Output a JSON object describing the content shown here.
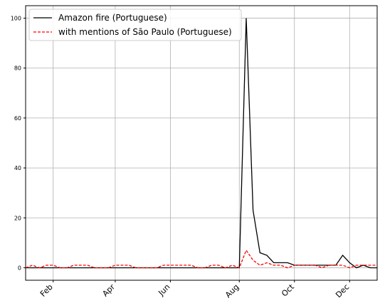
{
  "chart_data": {
    "type": "line",
    "categories": [
      null,
      null,
      null,
      null,
      "Feb",
      null,
      null,
      null,
      null,
      null,
      null,
      null,
      null,
      "Apr",
      null,
      null,
      null,
      null,
      null,
      null,
      null,
      "Jun",
      null,
      null,
      null,
      null,
      null,
      null,
      null,
      null,
      null,
      "Aug",
      null,
      null,
      null,
      null,
      null,
      null,
      null,
      "Oct",
      null,
      null,
      null,
      null,
      null,
      null,
      null,
      "Dec",
      null,
      null,
      null,
      null
    ],
    "series": [
      {
        "name": "Amazon fire (Portuguese)",
        "color": "#000000",
        "dash": false,
        "values": [
          0,
          0,
          0,
          0,
          0,
          0,
          0,
          0,
          0,
          0,
          0,
          0,
          0,
          0,
          0,
          0,
          0,
          0,
          0,
          0,
          0,
          0,
          0,
          0,
          0,
          0,
          0,
          0,
          0,
          0,
          0,
          0,
          100,
          23,
          6,
          5,
          2,
          2,
          2,
          1,
          1,
          1,
          1,
          1,
          1,
          1,
          5,
          2,
          0,
          1,
          0,
          0
        ]
      },
      {
        "name": "with mentions of São Paulo (Portuguese)",
        "color": "#ff0000",
        "dash": true,
        "values": [
          0,
          1,
          0,
          1,
          1,
          0,
          0,
          1,
          1,
          1,
          0,
          0,
          0,
          1,
          1,
          1,
          0,
          0,
          0,
          0,
          1,
          1,
          1,
          1,
          1,
          0,
          0,
          1,
          1,
          0,
          1,
          0,
          7,
          3,
          1,
          2,
          1,
          1,
          0,
          1,
          1,
          1,
          1,
          0,
          1,
          1,
          1,
          0,
          1,
          1,
          1,
          1
        ]
      }
    ],
    "ylim": [
      -5,
      105
    ],
    "yticks": [
      0,
      20,
      40,
      60,
      80,
      100
    ],
    "grid": true,
    "legend": "upper left"
  }
}
